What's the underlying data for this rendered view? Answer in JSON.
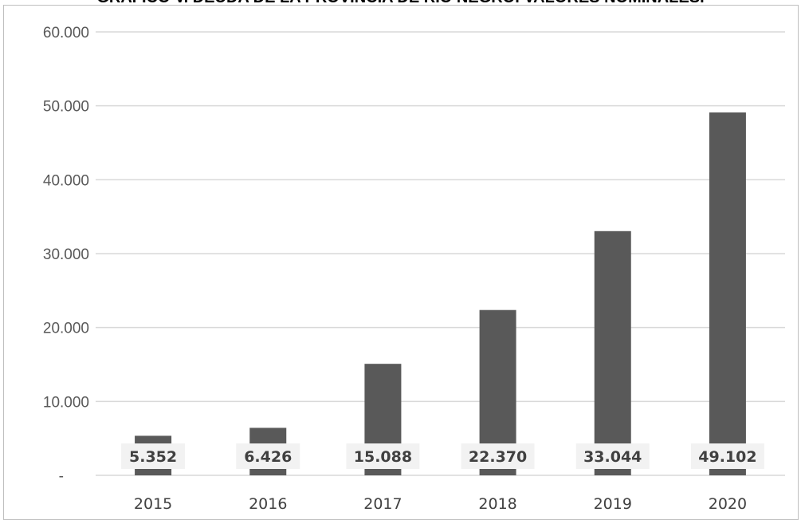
{
  "chart_data": {
    "type": "bar",
    "title": "GRÁFICO V. DEUDA DE LA PROVINCIA DE RÍO NEGRO. VALORES NOMINALES.",
    "xlabel": "",
    "ylabel": "",
    "categories": [
      "2015",
      "2016",
      "2017",
      "2018",
      "2019",
      "2020"
    ],
    "values": [
      5352,
      6426,
      15088,
      22370,
      33044,
      49102
    ],
    "data_labels": [
      "5.352",
      "6.426",
      "15.088",
      "22.370",
      "33.044",
      "49.102"
    ],
    "yticks": [
      0,
      10000,
      20000,
      30000,
      40000,
      50000,
      60000
    ],
    "ytick_labels": [
      "-",
      "10.000",
      "20.000",
      "30.000",
      "40.000",
      "50.000",
      "60.000"
    ],
    "ylim": [
      0,
      60000
    ],
    "grid": true,
    "legend": "none",
    "colors": {
      "bar": "#595959",
      "grid": "#d9d9d9",
      "label_bg": "#f2f2f2"
    }
  }
}
